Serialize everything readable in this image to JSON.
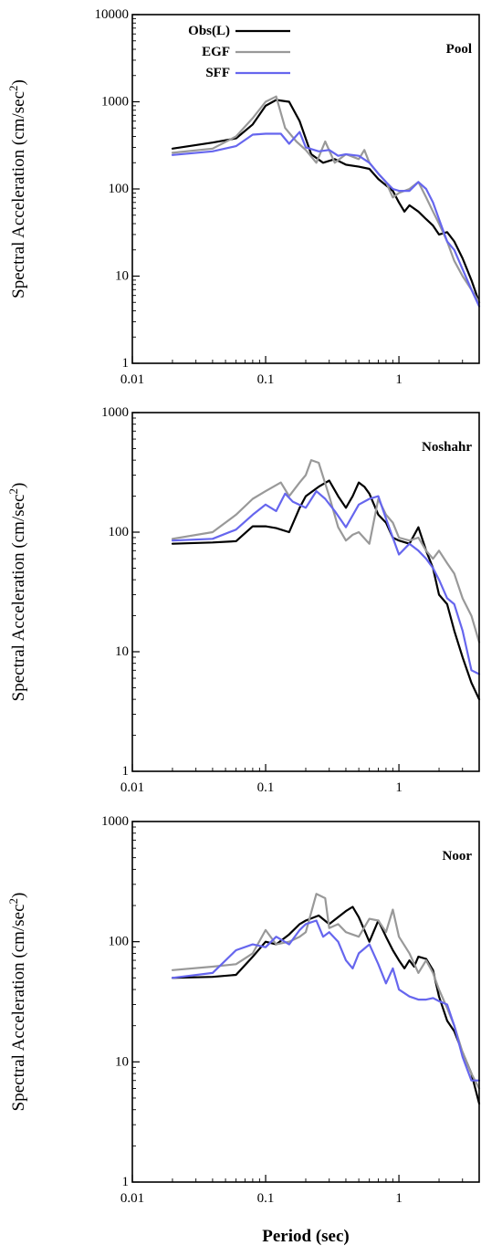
{
  "x_axis_label": "Period (sec)",
  "colors": {
    "obs": "#000000",
    "egf": "#999999",
    "sff": "#6666ee"
  },
  "chart_data": [
    {
      "type": "line",
      "title": "Pool",
      "ylabel": "Spectral Acceleration (cm/sec2)",
      "xscale": "log",
      "yscale": "log",
      "xlim": [
        0.01,
        4
      ],
      "ylim": [
        1,
        10000
      ],
      "xticks": [
        "0.01",
        "0.1",
        "1"
      ],
      "yticks": [
        "1",
        "10",
        "100",
        "1000",
        "10000"
      ],
      "legend": {
        "placement": "top-left"
      },
      "series": [
        {
          "name": "Obs(L)",
          "color": "#000000",
          "x": [
            0.02,
            0.04,
            0.06,
            0.08,
            0.1,
            0.12,
            0.15,
            0.18,
            0.22,
            0.27,
            0.33,
            0.4,
            0.5,
            0.6,
            0.7,
            0.8,
            0.9,
            1,
            1.1,
            1.2,
            1.4,
            1.6,
            1.8,
            2,
            2.3,
            2.6,
            3,
            3.5,
            4
          ],
          "y": [
            290,
            340,
            380,
            550,
            900,
            1050,
            1000,
            600,
            250,
            200,
            220,
            190,
            180,
            170,
            130,
            110,
            95,
            70,
            55,
            65,
            55,
            45,
            38,
            30,
            32,
            25,
            16,
            9,
            5
          ]
        },
        {
          "name": "EGF",
          "color": "#999999",
          "x": [
            0.02,
            0.04,
            0.06,
            0.08,
            0.1,
            0.12,
            0.14,
            0.17,
            0.2,
            0.24,
            0.28,
            0.33,
            0.4,
            0.5,
            0.55,
            0.6,
            0.7,
            0.8,
            0.9,
            1,
            1.2,
            1.4,
            1.6,
            1.8,
            2,
            2.3,
            2.6,
            3,
            3.5,
            4
          ],
          "y": [
            260,
            290,
            400,
            650,
            1000,
            1150,
            500,
            350,
            280,
            200,
            350,
            200,
            250,
            220,
            280,
            200,
            150,
            120,
            80,
            90,
            100,
            120,
            80,
            55,
            40,
            25,
            15,
            10,
            7,
            5
          ]
        },
        {
          "name": "SFF",
          "color": "#6666ee",
          "x": [
            0.02,
            0.04,
            0.06,
            0.08,
            0.1,
            0.13,
            0.15,
            0.18,
            0.2,
            0.25,
            0.3,
            0.35,
            0.4,
            0.5,
            0.6,
            0.7,
            0.8,
            0.9,
            1,
            1.2,
            1.4,
            1.6,
            1.8,
            2,
            2.3,
            2.6,
            3,
            3.5,
            4
          ],
          "y": [
            245,
            270,
            310,
            420,
            430,
            430,
            330,
            450,
            300,
            270,
            280,
            240,
            250,
            240,
            200,
            150,
            120,
            100,
            95,
            95,
            120,
            100,
            70,
            45,
            25,
            20,
            12,
            7,
            4.5
          ]
        }
      ]
    },
    {
      "type": "line",
      "title": "Noshahr",
      "ylabel": "Spectral Acceleration (cm/sec2)",
      "xscale": "log",
      "yscale": "log",
      "xlim": [
        0.01,
        4
      ],
      "ylim": [
        1,
        1000
      ],
      "xticks": [
        "0.01",
        "0.1",
        "1"
      ],
      "yticks": [
        "1",
        "10",
        "100",
        "1000"
      ],
      "series": [
        {
          "name": "Obs(L)",
          "color": "#000000",
          "x": [
            0.02,
            0.04,
            0.06,
            0.08,
            0.1,
            0.12,
            0.15,
            0.18,
            0.2,
            0.25,
            0.3,
            0.35,
            0.4,
            0.45,
            0.5,
            0.55,
            0.6,
            0.7,
            0.8,
            0.9,
            1,
            1.2,
            1.4,
            1.6,
            1.8,
            2,
            2.3,
            2.6,
            3,
            3.5,
            4
          ],
          "y": [
            80,
            82,
            84,
            112,
            112,
            108,
            100,
            160,
            200,
            240,
            270,
            200,
            160,
            200,
            260,
            240,
            210,
            140,
            120,
            90,
            85,
            80,
            110,
            70,
            50,
            30,
            25,
            15,
            9,
            5.5,
            4
          ]
        },
        {
          "name": "EGF",
          "color": "#999999",
          "x": [
            0.02,
            0.04,
            0.06,
            0.08,
            0.1,
            0.13,
            0.15,
            0.18,
            0.2,
            0.22,
            0.25,
            0.3,
            0.35,
            0.4,
            0.45,
            0.5,
            0.6,
            0.7,
            0.8,
            0.9,
            1,
            1.2,
            1.4,
            1.6,
            1.8,
            2,
            2.3,
            2.6,
            3,
            3.5,
            4
          ],
          "y": [
            88,
            100,
            140,
            190,
            220,
            260,
            200,
            260,
            300,
            400,
            380,
            200,
            110,
            85,
            95,
            100,
            80,
            190,
            140,
            120,
            90,
            85,
            90,
            70,
            60,
            70,
            55,
            45,
            28,
            20,
            12
          ]
        },
        {
          "name": "SFF",
          "color": "#6666ee",
          "x": [
            0.02,
            0.04,
            0.06,
            0.08,
            0.1,
            0.12,
            0.14,
            0.16,
            0.2,
            0.24,
            0.28,
            0.33,
            0.4,
            0.5,
            0.6,
            0.7,
            0.8,
            0.9,
            1,
            1.2,
            1.4,
            1.6,
            1.8,
            2,
            2.3,
            2.6,
            3,
            3.5,
            4
          ],
          "y": [
            85,
            88,
            105,
            140,
            170,
            150,
            210,
            180,
            160,
            220,
            190,
            150,
            110,
            170,
            190,
            200,
            130,
            90,
            65,
            80,
            70,
            60,
            50,
            40,
            28,
            25,
            15,
            7,
            6.5
          ]
        }
      ]
    },
    {
      "type": "line",
      "title": "Noor",
      "ylabel": "Spectral Acceleration (cm/sec2)",
      "xscale": "log",
      "yscale": "log",
      "xlim": [
        0.01,
        4
      ],
      "ylim": [
        1,
        1000
      ],
      "xticks": [
        "0.01",
        "0.1",
        "1"
      ],
      "yticks": [
        "1",
        "10",
        "100",
        "1000"
      ],
      "series": [
        {
          "name": "Obs(L)",
          "color": "#000000",
          "x": [
            0.02,
            0.04,
            0.06,
            0.08,
            0.1,
            0.12,
            0.15,
            0.18,
            0.2,
            0.25,
            0.3,
            0.35,
            0.4,
            0.45,
            0.5,
            0.6,
            0.7,
            0.8,
            0.9,
            1,
            1.1,
            1.2,
            1.3,
            1.4,
            1.6,
            1.8,
            2,
            2.3,
            2.6,
            3,
            3.5,
            4
          ],
          "y": [
            50,
            51,
            53,
            75,
            100,
            95,
            115,
            140,
            150,
            165,
            140,
            160,
            180,
            195,
            160,
            100,
            150,
            110,
            85,
            70,
            60,
            70,
            62,
            75,
            72,
            58,
            35,
            22,
            18,
            12,
            8,
            4.5
          ]
        },
        {
          "name": "EGF",
          "color": "#999999",
          "x": [
            0.02,
            0.04,
            0.06,
            0.08,
            0.1,
            0.12,
            0.15,
            0.18,
            0.2,
            0.24,
            0.28,
            0.3,
            0.35,
            0.4,
            0.5,
            0.6,
            0.7,
            0.8,
            0.9,
            1,
            1.2,
            1.4,
            1.6,
            1.8,
            2,
            2.3,
            2.6,
            3,
            3.5,
            4
          ],
          "y": [
            58,
            62,
            65,
            80,
            125,
            95,
            100,
            110,
            120,
            250,
            230,
            130,
            140,
            120,
            110,
            155,
            150,
            120,
            185,
            110,
            80,
            55,
            70,
            55,
            40,
            28,
            20,
            12,
            8,
            6
          ]
        },
        {
          "name": "SFF",
          "color": "#6666ee",
          "x": [
            0.02,
            0.04,
            0.06,
            0.08,
            0.1,
            0.12,
            0.15,
            0.18,
            0.2,
            0.24,
            0.27,
            0.3,
            0.35,
            0.4,
            0.45,
            0.5,
            0.6,
            0.7,
            0.8,
            0.9,
            1,
            1.2,
            1.4,
            1.6,
            1.8,
            2,
            2.3,
            2.6,
            3,
            3.5,
            4
          ],
          "y": [
            50,
            55,
            85,
            95,
            90,
            110,
            95,
            125,
            140,
            150,
            110,
            120,
            100,
            70,
            60,
            80,
            95,
            65,
            45,
            60,
            40,
            35,
            33,
            33,
            34,
            32,
            30,
            20,
            11,
            7,
            7
          ]
        }
      ]
    }
  ]
}
